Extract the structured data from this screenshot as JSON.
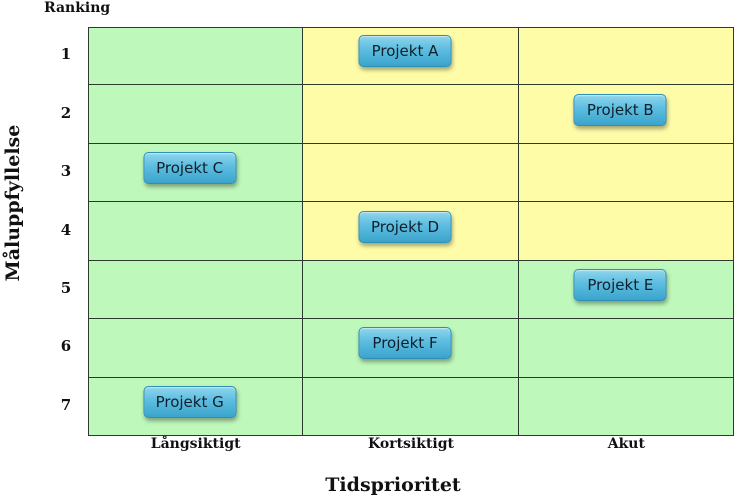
{
  "ranking_label": "Ranking",
  "y_axis_title": "Måluppfyllelse",
  "x_axis_title": "Tidsprioritet",
  "rows": [
    "1",
    "2",
    "3",
    "4",
    "5",
    "6",
    "7"
  ],
  "columns": [
    "Långsiktigt",
    "Kortsiktigt",
    "Akut"
  ],
  "colors": {
    "green": "#bff8bb",
    "yellow": "#fffca8",
    "box": "#5cbde0"
  },
  "cell_colors": [
    [
      "green",
      "yellow",
      "yellow"
    ],
    [
      "green",
      "yellow",
      "yellow"
    ],
    [
      "green",
      "yellow",
      "yellow"
    ],
    [
      "green",
      "yellow",
      "yellow"
    ],
    [
      "green",
      "green",
      "green"
    ],
    [
      "green",
      "green",
      "green"
    ],
    [
      "green",
      "green",
      "green"
    ]
  ],
  "projects": [
    {
      "name": "Projekt A",
      "row": 1,
      "column": "Kortsiktigt"
    },
    {
      "name": "Projekt B",
      "row": 2,
      "column": "Akut"
    },
    {
      "name": "Projekt C",
      "row": 3,
      "column": "Långsiktigt"
    },
    {
      "name": "Projekt D",
      "row": 4,
      "column": "Kortsiktigt"
    },
    {
      "name": "Projekt E",
      "row": 5,
      "column": "Akut"
    },
    {
      "name": "Projekt F",
      "row": 6,
      "column": "Kortsiktigt"
    },
    {
      "name": "Projekt G",
      "row": 7,
      "column": "Långsiktigt"
    }
  ]
}
